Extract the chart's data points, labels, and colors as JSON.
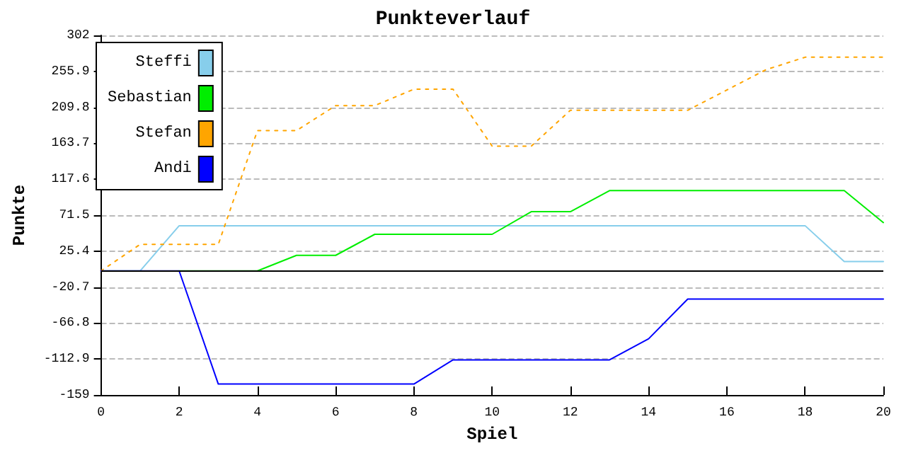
{
  "chart_data": {
    "type": "line",
    "title": "Punkteverlauf",
    "xlabel": "Spiel",
    "ylabel": "Punkte",
    "x": [
      0,
      1,
      2,
      3,
      4,
      5,
      6,
      7,
      8,
      9,
      10,
      11,
      12,
      13,
      14,
      15,
      16,
      17,
      18,
      19,
      20
    ],
    "series": [
      {
        "name": "Steffi",
        "color": "#87ceeb",
        "values": [
          0,
          0,
          58,
          58,
          58,
          58,
          58,
          58,
          58,
          58,
          58,
          58,
          58,
          58,
          58,
          58,
          58,
          58,
          58,
          12,
          12
        ]
      },
      {
        "name": "Sebastian",
        "color": "#00ee00",
        "values": [
          null,
          null,
          0,
          0,
          0,
          20,
          20,
          47,
          47,
          47,
          47,
          76,
          76,
          103,
          103,
          103,
          103,
          103,
          103,
          103,
          62
        ]
      },
      {
        "name": "Stefan",
        "color": "#ffa500",
        "line_style": "dotted",
        "values": [
          0,
          34,
          34,
          34,
          180,
          180,
          212,
          212,
          233,
          233,
          160,
          160,
          206,
          206,
          206,
          206,
          232,
          258,
          274,
          274,
          274
        ]
      },
      {
        "name": "Andi",
        "color": "#0000ff",
        "values": [
          0,
          0,
          0,
          -145,
          -145,
          -145,
          -145,
          -145,
          -145,
          -114,
          -114,
          -114,
          -114,
          -114,
          -87,
          -36,
          -36,
          -36,
          -36,
          -36,
          -36
        ]
      }
    ],
    "xlim": [
      0,
      20
    ],
    "xticks": [
      0,
      2,
      4,
      6,
      8,
      10,
      12,
      14,
      16,
      18,
      20
    ],
    "ylim": [
      -159,
      302
    ],
    "yticks": [
      -159,
      -112.9,
      -66.8,
      -20.7,
      25.4,
      71.5,
      117.6,
      163.7,
      209.8,
      255.9,
      302
    ],
    "ref_lines": [
      {
        "axis": "y",
        "value": 0,
        "color": "#000000"
      }
    ],
    "grid": "y",
    "legend": "top left",
    "marker": "none",
    "line_style": "solid"
  }
}
